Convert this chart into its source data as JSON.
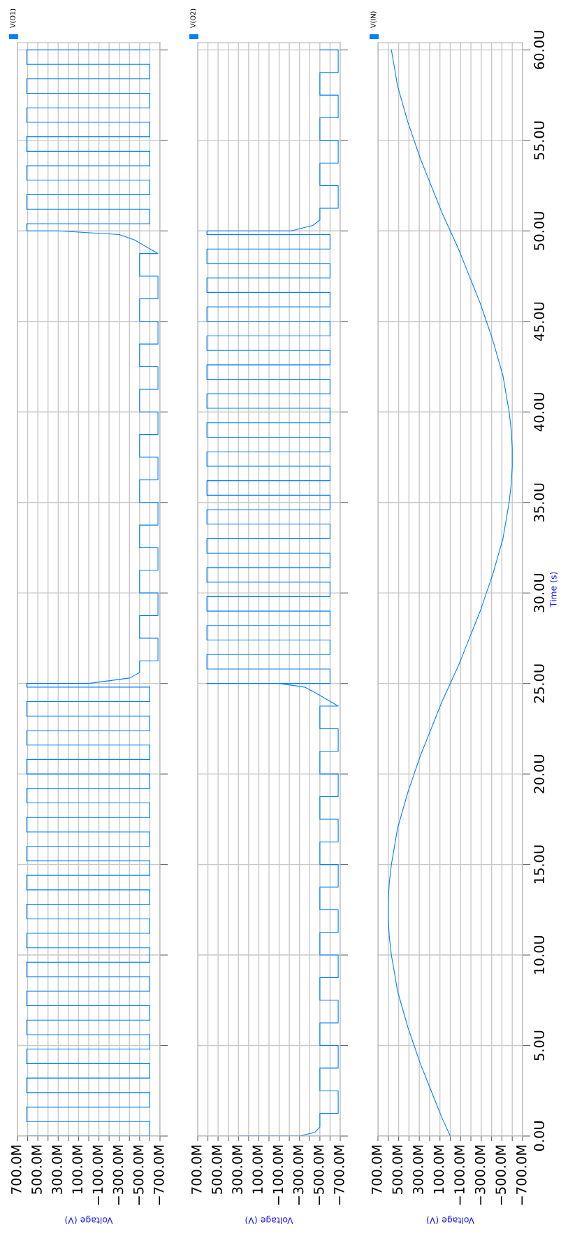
{
  "chart_data": [
    {
      "type": "line",
      "xlabel": "Voltage (V)",
      "legend": "top left",
      "grid": true,
      "tick_labels": "x",
      "xlim": [
        700,
        -700
      ],
      "xticks": [
        {
          "value": 700,
          "label": "700.0M"
        },
        {
          "value": 600,
          "label": null
        },
        {
          "value": 500,
          "label": "500.0M"
        },
        {
          "value": 400,
          "label": null
        },
        {
          "value": 300,
          "label": "300.0M"
        },
        {
          "value": 200,
          "label": null
        },
        {
          "value": 100,
          "label": "100.0M"
        },
        {
          "value": 0,
          "label": null
        },
        {
          "value": -100,
          "label": "−100.0M"
        },
        {
          "value": -200,
          "label": null
        },
        {
          "value": -300,
          "label": "−300.0M"
        },
        {
          "value": -400,
          "label": null
        },
        {
          "value": -500,
          "label": "−500.0M"
        },
        {
          "value": -600,
          "label": null
        },
        {
          "value": -700,
          "label": "−700.0M"
        }
      ],
      "ylim": [
        0,
        60.4
      ],
      "yticks": [
        {
          "value": 0,
          "label": null
        },
        {
          "value": 5,
          "label": null
        },
        {
          "value": 10,
          "label": null
        },
        {
          "value": 15,
          "label": null
        },
        {
          "value": 20,
          "label": null
        },
        {
          "value": 25,
          "label": null
        },
        {
          "value": 30,
          "label": null
        },
        {
          "value": 35,
          "label": null
        },
        {
          "value": 40,
          "label": null
        },
        {
          "value": 45,
          "label": null
        },
        {
          "value": 50,
          "label": null
        },
        {
          "value": 55,
          "label": null
        },
        {
          "value": 60,
          "label": null
        }
      ],
      "series": [
        {
          "name": "V(O1)",
          "color": "#0080ff",
          "x": [
            610,
            -600,
            -600,
            610,
            610,
            -600,
            -600,
            610,
            610,
            -600,
            -600,
            610,
            610,
            -600,
            -600,
            610,
            610,
            -600,
            -600,
            610,
            610,
            -600,
            -600,
            610,
            610,
            -600,
            -600,
            610,
            610,
            -600,
            -600,
            610,
            610,
            -600,
            -600,
            610,
            610,
            -600,
            -600,
            610,
            610,
            -600,
            -600,
            610,
            610,
            -600,
            -600,
            610,
            610,
            -600,
            -600,
            610,
            610,
            -600,
            -600,
            610,
            610,
            -600,
            -600,
            610,
            610,
            -600,
            -600,
            610,
            610,
            0,
            -400,
            -500,
            -500,
            -680,
            -680,
            -500,
            -500,
            -680,
            -680,
            -500,
            -500,
            -680,
            -680,
            -500,
            -500,
            -680,
            -680,
            -500,
            -500,
            -680,
            -680,
            -500,
            -500,
            -680,
            -680,
            -500,
            -500,
            -680,
            -680,
            -500,
            -500,
            -680,
            -680,
            -500,
            -500,
            -680,
            -680,
            -500,
            -500,
            -680,
            -450,
            -300,
            300,
            610,
            610,
            -600,
            -600,
            610,
            610,
            -600,
            -600,
            610,
            610,
            -600,
            -600,
            610,
            610,
            -600,
            -600,
            610,
            610,
            -600,
            -600,
            610,
            610,
            -600,
            -600,
            610,
            610,
            -600
          ],
          "values": [
            0,
            0,
            0.8,
            0.8,
            1.6,
            1.6,
            2.4,
            2.4,
            3.2,
            3.2,
            4,
            4,
            4.8,
            4.8,
            5.6,
            5.6,
            6.4,
            6.4,
            7.2,
            7.2,
            8,
            8,
            8.8,
            8.8,
            9.6,
            9.6,
            10.4,
            10.4,
            11.2,
            11.2,
            12,
            12,
            12.8,
            12.8,
            13.6,
            13.6,
            14.4,
            14.4,
            15.2,
            15.2,
            16,
            16,
            16.8,
            16.8,
            17.6,
            17.6,
            18.4,
            18.4,
            19.2,
            19.2,
            20,
            20,
            20.8,
            20.8,
            21.6,
            21.6,
            22.4,
            22.4,
            23.2,
            23.2,
            24,
            24,
            24.8,
            24.8,
            25,
            25,
            25.3,
            25.6,
            26.25,
            26.25,
            27.5,
            27.5,
            28.75,
            28.75,
            30,
            30,
            31.25,
            31.25,
            32.5,
            32.5,
            33.75,
            33.75,
            35,
            35,
            36.25,
            36.25,
            37.5,
            37.5,
            38.75,
            38.75,
            40,
            40,
            41.25,
            41.25,
            42.5,
            42.5,
            43.75,
            43.75,
            45,
            45,
            46.25,
            46.25,
            47.5,
            47.5,
            48.75,
            48.75,
            49.5,
            49.8,
            50,
            50,
            50.4,
            50.4,
            51.2,
            51.2,
            52,
            52,
            52.8,
            52.8,
            53.6,
            53.6,
            54.4,
            54.4,
            55.2,
            55.2,
            56,
            56,
            56.8,
            56.8,
            57.6,
            57.6,
            58.4,
            58.4,
            59.2,
            59.2,
            60,
            60
          ]
        }
      ]
    },
    {
      "type": "line",
      "xlabel": "Voltage (V)",
      "legend": "top left",
      "grid": true,
      "tick_labels": "x",
      "xlim": [
        700,
        -700
      ],
      "xticks": [
        {
          "value": 700,
          "label": "700.0M"
        },
        {
          "value": 600,
          "label": null
        },
        {
          "value": 500,
          "label": "500.0M"
        },
        {
          "value": 400,
          "label": null
        },
        {
          "value": 300,
          "label": "300.0M"
        },
        {
          "value": 200,
          "label": null
        },
        {
          "value": 100,
          "label": "100.0M"
        },
        {
          "value": 0,
          "label": null
        },
        {
          "value": -100,
          "label": "−100.0M"
        },
        {
          "value": -200,
          "label": null
        },
        {
          "value": -300,
          "label": "−300.0M"
        },
        {
          "value": -400,
          "label": null
        },
        {
          "value": -500,
          "label": "−500.0M"
        },
        {
          "value": -600,
          "label": null
        },
        {
          "value": -700,
          "label": "−700.0M"
        }
      ],
      "ylim": [
        0,
        60.4
      ],
      "yticks": [
        {
          "value": 0,
          "label": null
        },
        {
          "value": 5,
          "label": null
        },
        {
          "value": 10,
          "label": null
        },
        {
          "value": 15,
          "label": null
        },
        {
          "value": 20,
          "label": null
        },
        {
          "value": 25,
          "label": null
        },
        {
          "value": 30,
          "label": null
        },
        {
          "value": 35,
          "label": null
        },
        {
          "value": 40,
          "label": null
        },
        {
          "value": 45,
          "label": null
        },
        {
          "value": 50,
          "label": null
        },
        {
          "value": 55,
          "label": null
        },
        {
          "value": 60,
          "label": null
        }
      ],
      "series": [
        {
          "name": "V(O2)",
          "color": "#0080ff",
          "x": [
            290,
            -300,
            -450,
            -500,
            -500,
            -680,
            -680,
            -500,
            -500,
            -680,
            -680,
            -500,
            -500,
            -680,
            -680,
            -500,
            -500,
            -680,
            -680,
            -500,
            -500,
            -680,
            -680,
            -500,
            -500,
            -680,
            -680,
            -500,
            -500,
            -680,
            -680,
            -500,
            -500,
            -680,
            -680,
            -500,
            -500,
            -680,
            -680,
            -500,
            -500,
            -680,
            -450,
            -350,
            -100,
            610,
            -600,
            -600,
            610,
            610,
            -600,
            -600,
            610,
            610,
            -600,
            -600,
            610,
            610,
            -600,
            -600,
            610,
            610,
            -600,
            -600,
            610,
            610,
            -600,
            -600,
            610,
            610,
            -600,
            -600,
            610,
            610,
            -600,
            -600,
            610,
            610,
            -600,
            -600,
            610,
            610,
            -600,
            -600,
            610,
            610,
            -600,
            -600,
            610,
            610,
            -600,
            -600,
            610,
            610,
            -600,
            -600,
            610,
            610,
            -600,
            -600,
            610,
            610,
            -600,
            -600,
            610,
            610,
            -600,
            -600,
            610,
            610,
            -220,
            -430,
            -500,
            -500,
            -680,
            -680,
            -500,
            -500,
            -680,
            -680,
            -500,
            -500,
            -680,
            -680,
            -500,
            -500,
            -680,
            -680,
            -500
          ],
          "values": [
            0,
            0,
            0.2,
            0.5,
            1.25,
            1.25,
            2.5,
            2.5,
            3.75,
            3.75,
            5,
            5,
            6.25,
            6.25,
            7.5,
            7.5,
            8.75,
            8.75,
            10,
            10,
            11.25,
            11.25,
            12.5,
            12.5,
            13.75,
            13.75,
            15,
            15,
            16.25,
            16.25,
            17.5,
            17.5,
            18.75,
            18.75,
            20,
            20,
            21.25,
            21.25,
            22.5,
            22.5,
            23.75,
            23.75,
            24.5,
            24.8,
            25,
            25,
            25,
            25.8,
            25.8,
            26.6,
            26.6,
            27.4,
            27.4,
            28.2,
            28.2,
            29,
            29,
            29.8,
            29.8,
            30.6,
            30.6,
            31.4,
            31.4,
            32.2,
            32.2,
            33,
            33,
            33.8,
            33.8,
            34.6,
            34.6,
            35.4,
            35.4,
            36.2,
            36.2,
            37,
            37,
            37.8,
            37.8,
            38.6,
            38.6,
            39.4,
            39.4,
            40.2,
            40.2,
            41,
            41,
            41.8,
            41.8,
            42.6,
            42.6,
            43.4,
            43.4,
            44.2,
            44.2,
            45,
            45,
            45.8,
            45.8,
            46.6,
            46.6,
            47.4,
            47.4,
            48.2,
            48.2,
            49,
            49,
            49.8,
            49.8,
            50,
            50,
            50.3,
            50.6,
            51.25,
            51.25,
            52.5,
            52.5,
            53.75,
            53.75,
            55,
            55,
            56.25,
            56.25,
            57.5,
            57.5,
            58.75,
            58.75,
            60,
            60
          ]
        }
      ]
    },
    {
      "type": "line",
      "xlabel": "Voltage (V)",
      "ylabel": "Time (s)",
      "legend": "top left",
      "grid": true,
      "xlim": [
        700,
        -700
      ],
      "xticks": [
        {
          "value": 700,
          "label": "700.0M"
        },
        {
          "value": 600,
          "label": null
        },
        {
          "value": 500,
          "label": "500.0M"
        },
        {
          "value": 400,
          "label": null
        },
        {
          "value": 300,
          "label": "300.0M"
        },
        {
          "value": 200,
          "label": null
        },
        {
          "value": 100,
          "label": "100.0M"
        },
        {
          "value": 0,
          "label": null
        },
        {
          "value": -100,
          "label": "−100.0M"
        },
        {
          "value": -200,
          "label": null
        },
        {
          "value": -300,
          "label": "−300.0M"
        },
        {
          "value": -400,
          "label": null
        },
        {
          "value": -500,
          "label": "−500.0M"
        },
        {
          "value": -600,
          "label": null
        },
        {
          "value": -700,
          "label": "−700.0M"
        }
      ],
      "ylim": [
        0,
        60.4
      ],
      "yticks": [
        {
          "value": 0,
          "label": "0.0U"
        },
        {
          "value": 5,
          "label": "5.0U"
        },
        {
          "value": 10,
          "label": "10.0U"
        },
        {
          "value": 15,
          "label": "15.0U"
        },
        {
          "value": 20,
          "label": "20.0U"
        },
        {
          "value": 25,
          "label": "25.0U"
        },
        {
          "value": 30,
          "label": "30.0U"
        },
        {
          "value": 35,
          "label": "35.0U"
        },
        {
          "value": 40,
          "label": "40.0U"
        },
        {
          "value": 45,
          "label": "45.0U"
        },
        {
          "value": 50,
          "label": "50.0U"
        },
        {
          "value": 55,
          "label": "55.0U"
        },
        {
          "value": 60,
          "label": "60.0U"
        }
      ],
      "series": [
        {
          "name": "V(IN)",
          "color": "#0080ff",
          "x": [
            0,
            80,
            150,
            220,
            290,
            350,
            410,
            460,
            510,
            540,
            570,
            590,
            600,
            600,
            590,
            570,
            540,
            510,
            460,
            410,
            350,
            290,
            220,
            150,
            80,
            0,
            -80,
            -150,
            -220,
            -290,
            -350,
            -410,
            -460,
            -510,
            -540,
            -570,
            -590,
            -600,
            -600,
            -590,
            -570,
            -540,
            -510,
            -460,
            -410,
            -350,
            -290,
            -220,
            -150,
            -80,
            0,
            80,
            150,
            220,
            290,
            350,
            410,
            460,
            510,
            540,
            570
          ],
          "values": [
            0,
            1,
            2,
            3,
            4,
            5,
            6,
            7,
            8,
            9,
            10,
            11,
            12,
            13,
            14,
            15,
            16,
            17,
            18,
            19,
            20,
            21,
            22,
            23,
            24,
            25,
            26,
            27,
            28,
            29,
            30,
            31,
            32,
            33,
            34,
            35,
            36,
            37,
            38,
            39,
            40,
            41,
            42,
            43,
            44,
            45,
            46,
            47,
            48,
            49,
            50,
            51,
            52,
            53,
            54,
            55,
            56,
            57,
            58,
            59,
            60
          ]
        }
      ]
    }
  ]
}
